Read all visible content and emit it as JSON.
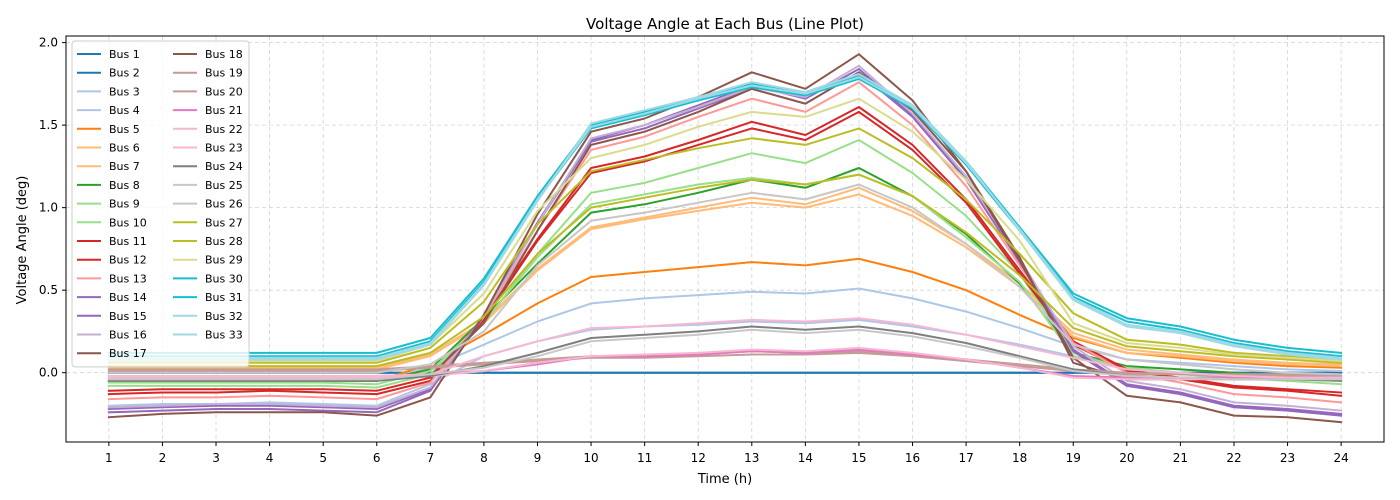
{
  "chart_data": {
    "type": "line",
    "title": "Voltage Angle at Each Bus (Line Plot)",
    "xlabel": "Time (h)",
    "ylabel": "Voltage Angle (deg)",
    "x": [
      1,
      2,
      3,
      4,
      5,
      6,
      7,
      8,
      9,
      10,
      11,
      12,
      13,
      14,
      15,
      16,
      17,
      18,
      19,
      20,
      21,
      22,
      23,
      24
    ],
    "x_ticks": [
      "1",
      "2",
      "3",
      "4",
      "5",
      "6",
      "7",
      "8",
      "9",
      "10",
      "11",
      "12",
      "13",
      "14",
      "15",
      "16",
      "17",
      "18",
      "19",
      "20",
      "21",
      "22",
      "23",
      "24"
    ],
    "xlim": [
      0.2,
      24.8
    ],
    "ylim": [
      -0.42,
      2.04
    ],
    "y_ticks": [
      0.0,
      0.5,
      1.0,
      1.5,
      2.0
    ],
    "y_tick_labels": [
      "0.0",
      "0.5",
      "1.0",
      "1.5",
      "2.0"
    ],
    "grid": true,
    "legend_position": "upper-left",
    "legend_columns": 2,
    "series": [
      {
        "name": "Bus 1",
        "color": "#1f77b4",
        "values": [
          0,
          0,
          0,
          0,
          0,
          0,
          0,
          0,
          0,
          0,
          0,
          0,
          0,
          0,
          0,
          0,
          0,
          0,
          0,
          0,
          0,
          0,
          0,
          0
        ]
      },
      {
        "name": "Bus 2",
        "color": "#1f77b4",
        "values": [
          0,
          0,
          0,
          0,
          0,
          0,
          0,
          0,
          0,
          0,
          0,
          0,
          0,
          0,
          0,
          0,
          0,
          0,
          0,
          0,
          0,
          0,
          0,
          0
        ]
      },
      {
        "name": "Bus 3",
        "color": "#aec7e8",
        "values": [
          -0.05,
          -0.05,
          -0.05,
          -0.05,
          -0.05,
          -0.05,
          0.03,
          0.17,
          0.31,
          0.42,
          0.45,
          0.47,
          0.49,
          0.48,
          0.51,
          0.45,
          0.37,
          0.27,
          0.16,
          0.08,
          0.06,
          0.04,
          0.02,
          0.01
        ]
      },
      {
        "name": "Bus 4",
        "color": "#aec7e8",
        "values": [
          -0.2,
          -0.19,
          -0.19,
          -0.18,
          -0.19,
          -0.2,
          -0.07,
          0.1,
          0.19,
          0.26,
          0.28,
          0.29,
          0.31,
          0.3,
          0.32,
          0.28,
          0.23,
          0.17,
          0.1,
          0.03,
          0.0,
          -0.03,
          -0.04,
          -0.05
        ]
      },
      {
        "name": "Bus 5",
        "color": "#ff7f0e",
        "values": [
          -0.05,
          -0.05,
          -0.05,
          -0.05,
          -0.05,
          -0.05,
          0.05,
          0.23,
          0.42,
          0.58,
          0.61,
          0.64,
          0.67,
          0.65,
          0.69,
          0.61,
          0.5,
          0.35,
          0.21,
          0.12,
          0.09,
          0.06,
          0.04,
          0.03
        ]
      },
      {
        "name": "Bus 6",
        "color": "#ffbb78",
        "values": [
          0.02,
          0.02,
          0.02,
          0.02,
          0.02,
          0.02,
          0.1,
          0.3,
          0.62,
          0.87,
          0.93,
          0.98,
          1.03,
          1.0,
          1.08,
          0.95,
          0.76,
          0.52,
          0.22,
          0.12,
          0.1,
          0.07,
          0.05,
          0.04
        ]
      },
      {
        "name": "Bus 7",
        "color": "#ffbb78",
        "values": [
          0.03,
          0.03,
          0.03,
          0.03,
          0.03,
          0.03,
          0.11,
          0.31,
          0.63,
          0.88,
          0.94,
          1.0,
          1.06,
          1.02,
          1.12,
          0.98,
          0.78,
          0.54,
          0.24,
          0.14,
          0.11,
          0.08,
          0.06,
          0.05
        ]
      },
      {
        "name": "Bus 8",
        "color": "#2ca02c",
        "values": [
          -0.05,
          -0.05,
          -0.05,
          -0.05,
          -0.05,
          -0.05,
          0.02,
          0.33,
          0.66,
          0.97,
          1.02,
          1.09,
          1.17,
          1.12,
          1.24,
          1.07,
          0.84,
          0.54,
          0.12,
          0.04,
          0.02,
          0.0,
          -0.02,
          -0.04
        ]
      },
      {
        "name": "Bus 9",
        "color": "#98df8a",
        "values": [
          -0.08,
          -0.08,
          -0.08,
          -0.08,
          -0.08,
          -0.09,
          -0.01,
          0.3,
          0.72,
          1.09,
          1.15,
          1.24,
          1.33,
          1.27,
          1.41,
          1.21,
          0.95,
          0.6,
          0.12,
          0.02,
          -0.01,
          -0.03,
          -0.05,
          -0.07
        ]
      },
      {
        "name": "Bus 10",
        "color": "#98df8a",
        "values": [
          -0.06,
          -0.06,
          -0.06,
          -0.06,
          -0.06,
          -0.07,
          0.01,
          0.31,
          0.7,
          1.02,
          1.08,
          1.14,
          1.18,
          1.14,
          1.2,
          1.07,
          0.82,
          0.55,
          0.1,
          0.03,
          0.0,
          -0.02,
          -0.04,
          -0.05
        ]
      },
      {
        "name": "Bus 11",
        "color": "#d62728",
        "values": [
          -0.13,
          -0.12,
          -0.12,
          -0.11,
          -0.12,
          -0.13,
          -0.05,
          0.33,
          0.81,
          1.24,
          1.31,
          1.41,
          1.52,
          1.44,
          1.61,
          1.38,
          1.05,
          0.62,
          0.19,
          0.02,
          -0.04,
          -0.09,
          -0.11,
          -0.14
        ]
      },
      {
        "name": "Bus 12",
        "color": "#d62728",
        "values": [
          -0.11,
          -0.1,
          -0.1,
          -0.1,
          -0.1,
          -0.11,
          -0.03,
          0.32,
          0.8,
          1.21,
          1.28,
          1.38,
          1.48,
          1.41,
          1.58,
          1.35,
          1.03,
          0.6,
          0.17,
          0.01,
          -0.03,
          -0.08,
          -0.1,
          -0.12
        ]
      },
      {
        "name": "Bus 13",
        "color": "#ff9896",
        "values": [
          -0.16,
          -0.15,
          -0.15,
          -0.14,
          -0.15,
          -0.16,
          -0.06,
          0.34,
          0.86,
          1.35,
          1.43,
          1.55,
          1.66,
          1.58,
          1.76,
          1.5,
          1.13,
          0.65,
          0.18,
          0.0,
          -0.06,
          -0.13,
          -0.15,
          -0.18
        ]
      },
      {
        "name": "Bus 14",
        "color": "#9467bd",
        "values": [
          -0.22,
          -0.21,
          -0.2,
          -0.2,
          -0.21,
          -0.22,
          -0.1,
          0.35,
          0.9,
          1.4,
          1.48,
          1.6,
          1.72,
          1.63,
          1.82,
          1.55,
          1.17,
          0.67,
          0.14,
          -0.07,
          -0.12,
          -0.2,
          -0.22,
          -0.25
        ]
      },
      {
        "name": "Bus 15",
        "color": "#9467bd",
        "values": [
          -0.24,
          -0.23,
          -0.22,
          -0.22,
          -0.23,
          -0.24,
          -0.11,
          0.35,
          0.91,
          1.41,
          1.5,
          1.62,
          1.74,
          1.66,
          1.84,
          1.56,
          1.18,
          0.68,
          0.13,
          -0.08,
          -0.13,
          -0.21,
          -0.23,
          -0.26
        ]
      },
      {
        "name": "Bus 16",
        "color": "#c5b0d5",
        "values": [
          -0.21,
          -0.2,
          -0.19,
          -0.19,
          -0.2,
          -0.21,
          -0.09,
          0.34,
          0.9,
          1.42,
          1.5,
          1.61,
          1.73,
          1.67,
          1.86,
          1.57,
          1.19,
          0.69,
          0.16,
          -0.05,
          -0.1,
          -0.18,
          -0.2,
          -0.23
        ]
      },
      {
        "name": "Bus 17",
        "color": "#8c564b",
        "values": [
          -0.27,
          -0.25,
          -0.24,
          -0.24,
          -0.24,
          -0.26,
          -0.15,
          0.35,
          0.96,
          1.46,
          1.54,
          1.67,
          1.82,
          1.72,
          1.93,
          1.65,
          1.22,
          0.68,
          0.09,
          -0.14,
          -0.18,
          -0.26,
          -0.27,
          -0.3
        ]
      },
      {
        "name": "Bus 18",
        "color": "#8c564b",
        "values": [
          -0.04,
          -0.04,
          -0.04,
          -0.04,
          -0.04,
          -0.04,
          -0.02,
          0.3,
          0.86,
          1.38,
          1.46,
          1.58,
          1.72,
          1.63,
          1.82,
          1.59,
          1.22,
          0.7,
          0.06,
          -0.04,
          -0.04,
          -0.04,
          -0.04,
          -0.04
        ]
      },
      {
        "name": "Bus 19",
        "color": "#c49c94",
        "values": [
          0.02,
          0.02,
          0.02,
          0.02,
          0.02,
          0.02,
          0.04,
          0.06,
          0.08,
          0.1,
          0.1,
          0.11,
          0.13,
          0.12,
          0.13,
          0.11,
          0.08,
          0.05,
          0.02,
          0.0,
          -0.01,
          -0.01,
          -0.01,
          -0.02
        ]
      },
      {
        "name": "Bus 20",
        "color": "#c49c94",
        "values": [
          0.01,
          0.01,
          0.01,
          0.01,
          0.01,
          0.01,
          0.03,
          0.05,
          0.07,
          0.09,
          0.09,
          0.1,
          0.11,
          0.11,
          0.12,
          0.1,
          0.07,
          0.04,
          0.01,
          -0.01,
          -0.01,
          -0.02,
          -0.02,
          -0.02
        ]
      },
      {
        "name": "Bus 21",
        "color": "#e377c2",
        "values": [
          -0.02,
          -0.02,
          -0.02,
          -0.02,
          -0.02,
          -0.02,
          -0.01,
          0.01,
          0.05,
          0.1,
          0.1,
          0.11,
          0.13,
          0.12,
          0.14,
          0.11,
          0.08,
          0.03,
          -0.02,
          -0.03,
          -0.03,
          -0.03,
          -0.03,
          -0.03
        ]
      },
      {
        "name": "Bus 22",
        "color": "#f7b6d2",
        "values": [
          -0.03,
          -0.03,
          -0.03,
          -0.03,
          -0.03,
          -0.03,
          -0.02,
          0.01,
          0.06,
          0.1,
          0.11,
          0.12,
          0.14,
          0.13,
          0.15,
          0.12,
          0.08,
          0.03,
          -0.03,
          -0.04,
          -0.04,
          -0.04,
          -0.04,
          -0.04
        ]
      },
      {
        "name": "Bus 23",
        "color": "#f7b6d2",
        "values": [
          -0.02,
          -0.02,
          -0.02,
          -0.02,
          -0.02,
          -0.02,
          -0.01,
          0.1,
          0.19,
          0.27,
          0.28,
          0.3,
          0.32,
          0.31,
          0.33,
          0.29,
          0.23,
          0.16,
          0.09,
          0.02,
          0.0,
          -0.02,
          -0.03,
          -0.03
        ]
      },
      {
        "name": "Bus 24",
        "color": "#7f7f7f",
        "values": [
          -0.05,
          -0.05,
          -0.05,
          -0.05,
          -0.05,
          -0.05,
          -0.02,
          0.04,
          0.12,
          0.21,
          0.23,
          0.25,
          0.28,
          0.26,
          0.28,
          0.24,
          0.18,
          0.1,
          0.02,
          -0.02,
          -0.03,
          -0.04,
          -0.04,
          -0.05
        ]
      },
      {
        "name": "Bus 25",
        "color": "#c7c7c7",
        "values": [
          -0.04,
          -0.04,
          -0.04,
          -0.04,
          -0.04,
          -0.04,
          -0.01,
          0.03,
          0.1,
          0.19,
          0.21,
          0.23,
          0.26,
          0.24,
          0.26,
          0.22,
          0.16,
          0.09,
          0.01,
          -0.02,
          -0.03,
          -0.04,
          -0.04,
          -0.04
        ]
      },
      {
        "name": "Bus 26",
        "color": "#c7c7c7",
        "values": [
          0.0,
          0.0,
          0.0,
          0.0,
          0.0,
          0.0,
          0.05,
          0.25,
          0.65,
          0.92,
          0.97,
          1.03,
          1.09,
          1.05,
          1.14,
          1.0,
          0.78,
          0.52,
          0.17,
          0.08,
          0.05,
          0.02,
          0.0,
          -0.01
        ]
      },
      {
        "name": "Bus 27",
        "color": "#bcbd22",
        "values": [
          0.04,
          0.04,
          0.04,
          0.04,
          0.04,
          0.04,
          0.12,
          0.34,
          0.72,
          1.0,
          1.06,
          1.12,
          1.17,
          1.14,
          1.2,
          1.07,
          0.85,
          0.59,
          0.27,
          0.16,
          0.13,
          0.1,
          0.08,
          0.06
        ]
      },
      {
        "name": "Bus 28",
        "color": "#bcbd22",
        "values": [
          0.06,
          0.06,
          0.06,
          0.06,
          0.06,
          0.06,
          0.15,
          0.43,
          0.9,
          1.22,
          1.29,
          1.36,
          1.42,
          1.38,
          1.48,
          1.3,
          1.05,
          0.72,
          0.36,
          0.2,
          0.17,
          0.12,
          0.1,
          0.07
        ]
      },
      {
        "name": "Bus 29",
        "color": "#dbdb8d",
        "values": [
          0.07,
          0.07,
          0.07,
          0.07,
          0.07,
          0.07,
          0.17,
          0.48,
          0.98,
          1.3,
          1.38,
          1.49,
          1.58,
          1.55,
          1.66,
          1.46,
          1.17,
          0.8,
          0.3,
          0.18,
          0.15,
          0.11,
          0.09,
          0.07
        ]
      },
      {
        "name": "Bus 30",
        "color": "#17becf",
        "values": [
          0.12,
          0.12,
          0.12,
          0.12,
          0.12,
          0.12,
          0.21,
          0.57,
          1.07,
          1.5,
          1.58,
          1.67,
          1.75,
          1.7,
          1.8,
          1.62,
          1.28,
          0.88,
          0.48,
          0.33,
          0.28,
          0.2,
          0.15,
          0.12
        ]
      },
      {
        "name": "Bus 31",
        "color": "#17becf",
        "values": [
          0.1,
          0.1,
          0.1,
          0.1,
          0.1,
          0.1,
          0.19,
          0.55,
          1.05,
          1.48,
          1.56,
          1.65,
          1.73,
          1.68,
          1.78,
          1.6,
          1.26,
          0.86,
          0.46,
          0.31,
          0.26,
          0.18,
          0.13,
          0.1
        ]
      },
      {
        "name": "Bus 32",
        "color": "#9edae5",
        "values": [
          0.09,
          0.09,
          0.09,
          0.09,
          0.09,
          0.09,
          0.18,
          0.54,
          1.05,
          1.49,
          1.57,
          1.66,
          1.74,
          1.69,
          1.79,
          1.61,
          1.27,
          0.87,
          0.45,
          0.29,
          0.25,
          0.17,
          0.12,
          0.09
        ]
      },
      {
        "name": "Bus 33",
        "color": "#9edae5",
        "values": [
          0.08,
          0.08,
          0.08,
          0.08,
          0.08,
          0.08,
          0.17,
          0.53,
          1.04,
          1.51,
          1.59,
          1.67,
          1.76,
          1.7,
          1.81,
          1.62,
          1.28,
          0.86,
          0.44,
          0.28,
          0.24,
          0.16,
          0.11,
          0.08
        ]
      }
    ]
  }
}
